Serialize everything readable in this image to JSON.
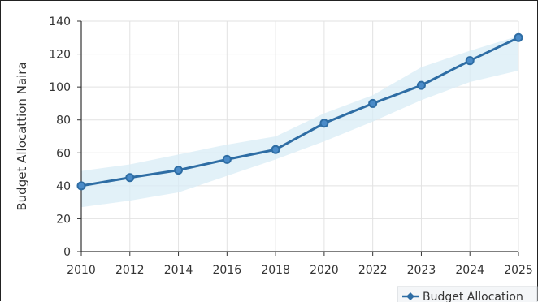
{
  "chart_data": {
    "type": "line",
    "title": "",
    "xlabel": "",
    "ylabel": "Budget Allocattion Naira",
    "categories": [
      "2010",
      "2012",
      "2014",
      "2016",
      "2018",
      "2020",
      "2022",
      "2023",
      "2024",
      "2025"
    ],
    "series": [
      {
        "name": "Budget Allocation",
        "values": [
          40,
          45,
          49.5,
          56,
          62,
          78,
          90,
          101,
          116,
          130
        ],
        "band_low": [
          27,
          31,
          36,
          46,
          56,
          67,
          79,
          92,
          103,
          110
        ],
        "band_high": [
          49,
          53,
          59,
          65,
          70,
          84,
          95,
          112,
          122,
          131
        ]
      }
    ],
    "ylim": [
      0,
      140
    ],
    "yticks": [
      0,
      20,
      40,
      60,
      80,
      100,
      120,
      140
    ],
    "grid": true,
    "legend_position": "bottom-right",
    "colors": {
      "line": "#2e6da4",
      "marker_fill": "#4a8bc8",
      "band": "#d8ecf6",
      "grid": "#e2e2e2",
      "axis": "#333333"
    }
  }
}
